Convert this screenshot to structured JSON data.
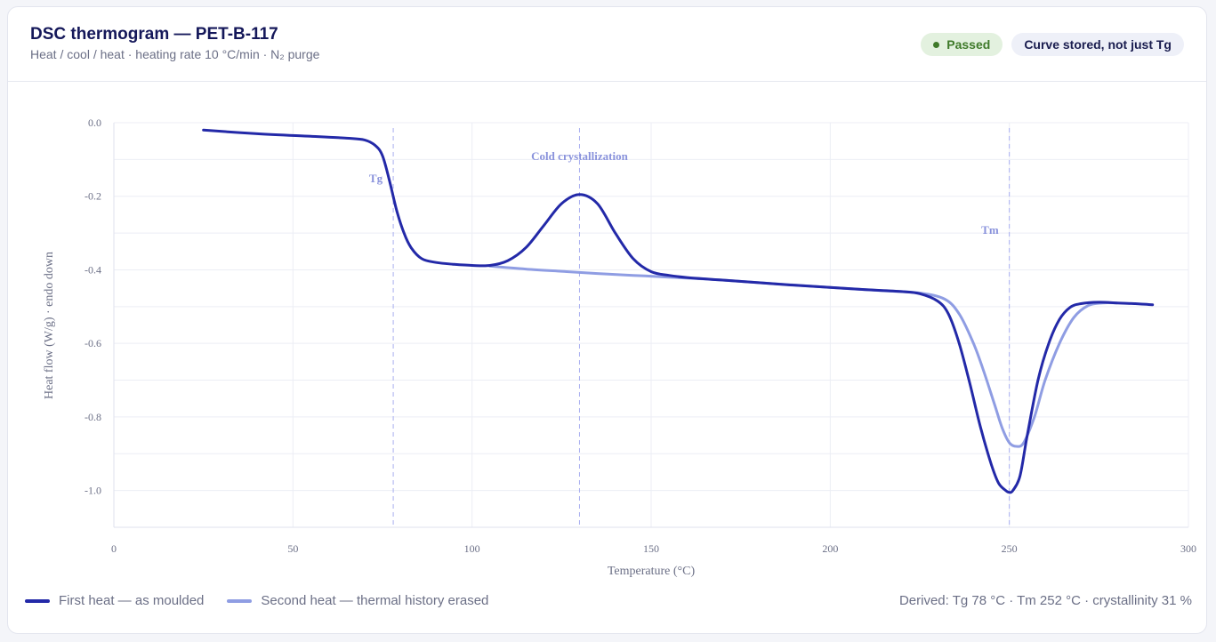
{
  "header": {
    "title": "DSC thermogram — PET-B-117",
    "subtitle": "Heat / cool / heat · heating rate 10 °C/min · N₂ purge",
    "status_badge": "Passed",
    "note_badge": "Curve stored, not just Tg"
  },
  "footer": {
    "derived": "Derived: Tg 78 °C · Tm 252 °C · crystallinity 31 %"
  },
  "colors": {
    "first_heat": "#2329a8",
    "second_heat": "#8f9de3",
    "marker": "#a7aef0",
    "annotation": "#8a93dc"
  },
  "chart_data": {
    "type": "line",
    "xlabel": "Temperature (°C)",
    "ylabel": "Heat flow (W/g) · endo down",
    "xlim": [
      0,
      300
    ],
    "ylim": [
      -1.1,
      0.0
    ],
    "xticks": [
      0,
      50,
      100,
      150,
      200,
      250,
      300
    ],
    "yticks": [
      0.0,
      -0.2,
      -0.4,
      -0.6,
      -0.8,
      -1.0
    ],
    "ytick_labels": [
      "0.0",
      "-0.2",
      "-0.4",
      "-0.6",
      "-0.8",
      "-1.0"
    ],
    "grid": true,
    "legend_position": "bottom-left",
    "series": [
      {
        "name": "First heat — as moulded",
        "x": [
          25,
          40,
          55,
          65,
          70,
          73,
          75,
          77,
          79,
          81,
          83,
          86,
          90,
          95,
          100,
          105,
          110,
          115,
          120,
          125,
          130,
          135,
          140,
          145,
          150,
          155,
          160,
          170,
          180,
          190,
          200,
          210,
          220,
          225,
          230,
          233,
          236,
          239,
          242,
          245,
          247,
          249,
          250,
          251,
          253,
          255,
          258,
          261,
          264,
          267,
          270,
          275,
          280,
          285,
          290
        ],
        "y": [
          -0.02,
          -0.03,
          -0.037,
          -0.042,
          -0.047,
          -0.062,
          -0.09,
          -0.16,
          -0.24,
          -0.3,
          -0.34,
          -0.37,
          -0.38,
          -0.385,
          -0.388,
          -0.388,
          -0.375,
          -0.34,
          -0.28,
          -0.22,
          -0.195,
          -0.22,
          -0.3,
          -0.37,
          -0.405,
          -0.415,
          -0.421,
          -0.428,
          -0.435,
          -0.442,
          -0.448,
          -0.454,
          -0.459,
          -0.465,
          -0.485,
          -0.52,
          -0.6,
          -0.71,
          -0.83,
          -0.93,
          -0.98,
          -1.0,
          -1.005,
          -1.0,
          -0.96,
          -0.85,
          -0.7,
          -0.6,
          -0.535,
          -0.502,
          -0.492,
          -0.488,
          -0.49,
          -0.492,
          -0.495
        ]
      },
      {
        "name": "Second heat — thermal history erased",
        "x": [
          105,
          115,
          125,
          135,
          145,
          155,
          170,
          185,
          200,
          215,
          225,
          232,
          236,
          240,
          243,
          246,
          248,
          250,
          252,
          254,
          257,
          260,
          264,
          268,
          272,
          276,
          280
        ],
        "y": [
          -0.39,
          -0.398,
          -0.404,
          -0.41,
          -0.415,
          -0.42,
          -0.428,
          -0.438,
          -0.448,
          -0.457,
          -0.463,
          -0.48,
          -0.52,
          -0.6,
          -0.68,
          -0.77,
          -0.83,
          -0.87,
          -0.88,
          -0.87,
          -0.8,
          -0.7,
          -0.6,
          -0.53,
          -0.497,
          -0.49,
          -0.49
        ]
      }
    ],
    "markers": [
      {
        "x": 78,
        "label": "Tg"
      },
      {
        "x": 130,
        "label": "Cold crystallization"
      },
      {
        "x": 250,
        "label": "Tm"
      }
    ]
  }
}
